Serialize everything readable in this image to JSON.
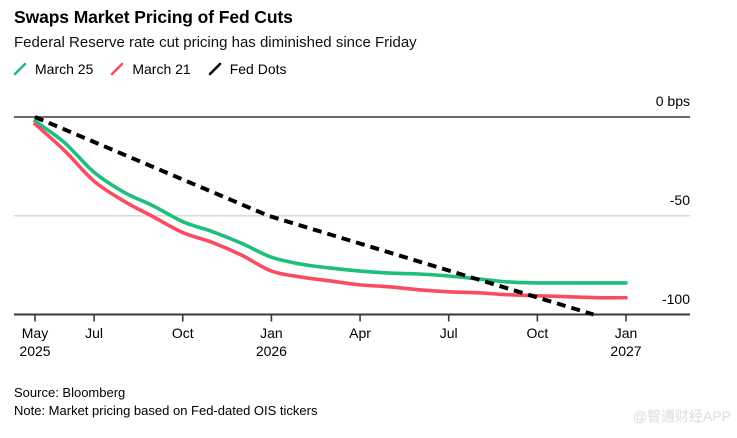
{
  "header": {
    "title": "Swaps Market Pricing of Fed Cuts",
    "subtitle": "Federal Reserve rate cut pricing has diminished since Friday"
  },
  "legend": [
    {
      "label": "March 25",
      "color": "#1ebe7d"
    },
    {
      "label": "March 21",
      "color": "#fa4b60"
    },
    {
      "label": "Fed Dots",
      "color": "#000000"
    }
  ],
  "footer": {
    "source": "Source: Bloomberg",
    "note": "Note: Market pricing based on Fed-dated OIS tickers"
  },
  "watermark": "@智通财经APP",
  "chart_data": {
    "type": "line",
    "title": "Swaps Market Pricing of Fed Cuts",
    "ylabel": "bps",
    "ylim": [
      -105,
      5
    ],
    "grid": "horizontal",
    "legend_position": "top-left",
    "x_axis": {
      "start": "May 2025",
      "end": "Jan 2027",
      "unit": "months"
    },
    "x_ticks": [
      {
        "m": 0,
        "label": "May",
        "sub": "2025"
      },
      {
        "m": 2,
        "label": "Jul"
      },
      {
        "m": 5,
        "label": "Oct"
      },
      {
        "m": 8,
        "label": "Jan",
        "sub": "2026"
      },
      {
        "m": 11,
        "label": "Apr"
      },
      {
        "m": 14,
        "label": "Jul"
      },
      {
        "m": 17,
        "label": "Oct"
      },
      {
        "m": 20,
        "label": "Jan",
        "sub": "2027"
      }
    ],
    "y_ticks": [
      {
        "v": 0,
        "label": "0 bps"
      },
      {
        "v": -50,
        "label": "-50"
      },
      {
        "v": -100,
        "label": "-100"
      }
    ],
    "series": [
      {
        "name": "March 25",
        "color": "#1ebe7d",
        "style": "solid",
        "points": [
          [
            0,
            -2
          ],
          [
            1,
            -13
          ],
          [
            2,
            -28
          ],
          [
            3,
            -38
          ],
          [
            4,
            -45
          ],
          [
            5,
            -53
          ],
          [
            6,
            -58
          ],
          [
            7,
            -64
          ],
          [
            8,
            -71
          ],
          [
            9,
            -74.5
          ],
          [
            10,
            -76.5
          ],
          [
            11,
            -78
          ],
          [
            12,
            -79
          ],
          [
            13,
            -79.5
          ],
          [
            14,
            -80.5
          ],
          [
            15,
            -82
          ],
          [
            16,
            -83.5
          ],
          [
            17,
            -84
          ],
          [
            18,
            -84
          ],
          [
            19,
            -84
          ],
          [
            20,
            -84
          ]
        ]
      },
      {
        "name": "March 21",
        "color": "#fa4b60",
        "style": "solid",
        "points": [
          [
            0,
            -3.5
          ],
          [
            1,
            -17
          ],
          [
            2,
            -32.5
          ],
          [
            3,
            -42.5
          ],
          [
            4,
            -50.5
          ],
          [
            5,
            -58.5
          ],
          [
            6,
            -63.5
          ],
          [
            7,
            -70
          ],
          [
            8,
            -78
          ],
          [
            9,
            -81
          ],
          [
            10,
            -83
          ],
          [
            11,
            -85
          ],
          [
            12,
            -86
          ],
          [
            13,
            -87.5
          ],
          [
            14,
            -88.5
          ],
          [
            15,
            -89
          ],
          [
            16,
            -90
          ],
          [
            17,
            -90.5
          ],
          [
            18,
            -91
          ],
          [
            19,
            -91.5
          ],
          [
            20,
            -91.5
          ]
        ]
      },
      {
        "name": "Fed Dots",
        "color": "#000000",
        "style": "dashed",
        "points": [
          [
            0,
            0
          ],
          [
            7.9,
            -50
          ],
          [
            18.9,
            -100
          ]
        ]
      }
    ]
  }
}
